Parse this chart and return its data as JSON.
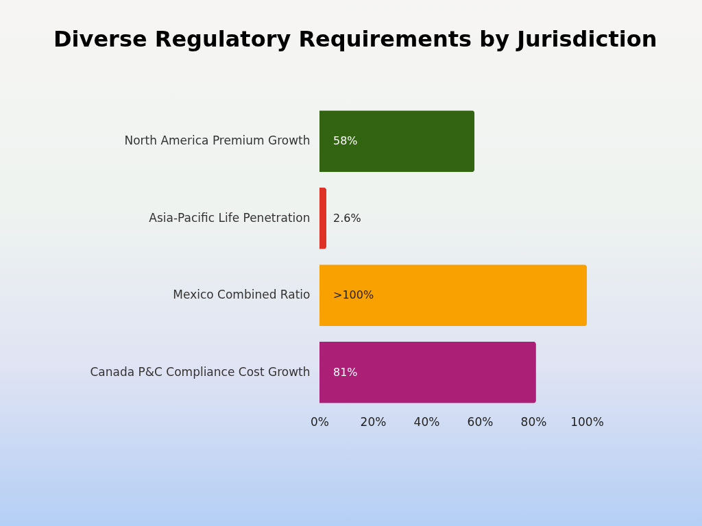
{
  "chart_data": {
    "type": "bar",
    "orientation": "horizontal",
    "title": "Diverse Regulatory Requirements by Jurisdiction",
    "categories": [
      "North America Premium Growth",
      "Asia-Pacific Life Penetration",
      "Mexico Combined Ratio",
      "Canada P&C Compliance Cost Growth"
    ],
    "values": [
      58,
      2.6,
      100,
      81
    ],
    "colors": [
      "#336411",
      "#e03127",
      "#f9a100",
      "#ab1f77"
    ],
    "value_labels": [
      "58%",
      "2.6%",
      ">100%",
      "81%"
    ],
    "xlim": [
      0,
      100
    ],
    "xticks": [
      {
        "value": 0,
        "label": "0%"
      },
      {
        "value": 20,
        "label": "20%"
      },
      {
        "value": 40,
        "label": "40%"
      },
      {
        "value": 60,
        "label": "60%"
      },
      {
        "value": 80,
        "label": "80%"
      },
      {
        "value": 100,
        "label": "100%"
      }
    ],
    "grid": false
  }
}
